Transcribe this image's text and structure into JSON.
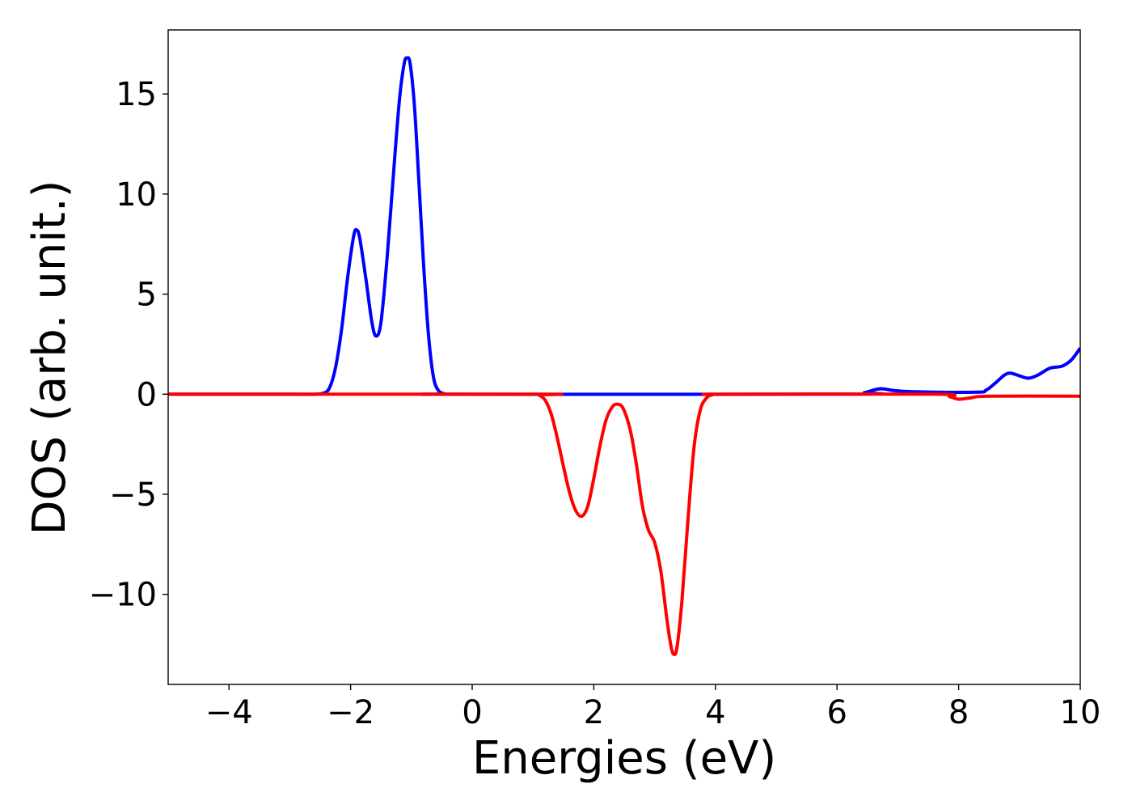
{
  "chart_data": {
    "type": "line",
    "title": "",
    "xlabel": "Energies (eV)",
    "ylabel": "DOS (arb. unit.)",
    "xlim": [
      -5,
      10
    ],
    "ylim": [
      -14.5,
      18.2
    ],
    "grid": false,
    "legend": "none",
    "x_ticks": [
      -4,
      -2,
      0,
      2,
      4,
      6,
      8,
      10
    ],
    "x_tick_labels": [
      "−4",
      "−2",
      "0",
      "2",
      "4",
      "6",
      "8",
      "10"
    ],
    "y_ticks": [
      -10,
      -5,
      0,
      5,
      10,
      15
    ],
    "y_tick_labels": [
      "−10",
      "−5",
      "0",
      "5",
      "10",
      "15"
    ],
    "series": [
      {
        "color": "#0000ff",
        "points": [
          [
            -5.0,
            0.0
          ],
          [
            -3.0,
            0.0
          ],
          [
            -2.6,
            0.0
          ],
          [
            -2.45,
            0.05
          ],
          [
            -2.35,
            0.3
          ],
          [
            -2.25,
            1.3
          ],
          [
            -2.15,
            3.2
          ],
          [
            -2.05,
            5.8
          ],
          [
            -1.95,
            7.9
          ],
          [
            -1.9,
            8.2
          ],
          [
            -1.85,
            7.8
          ],
          [
            -1.75,
            5.8
          ],
          [
            -1.65,
            3.6
          ],
          [
            -1.58,
            2.9
          ],
          [
            -1.5,
            3.6
          ],
          [
            -1.4,
            6.8
          ],
          [
            -1.3,
            10.8
          ],
          [
            -1.2,
            14.6
          ],
          [
            -1.12,
            16.5
          ],
          [
            -1.07,
            16.8
          ],
          [
            -1.02,
            16.5
          ],
          [
            -0.95,
            14.4
          ],
          [
            -0.88,
            10.8
          ],
          [
            -0.8,
            6.5
          ],
          [
            -0.72,
            3.0
          ],
          [
            -0.64,
            0.9
          ],
          [
            -0.56,
            0.2
          ],
          [
            -0.45,
            0.02
          ],
          [
            -0.3,
            0.0
          ],
          [
            6.2,
            0.0
          ],
          [
            6.45,
            0.08
          ],
          [
            6.7,
            0.27
          ],
          [
            6.95,
            0.18
          ],
          [
            7.3,
            0.12
          ],
          [
            8.3,
            0.1
          ],
          [
            8.45,
            0.2
          ],
          [
            8.6,
            0.55
          ],
          [
            8.75,
            0.95
          ],
          [
            8.85,
            1.05
          ],
          [
            9.0,
            0.92
          ],
          [
            9.15,
            0.8
          ],
          [
            9.3,
            0.95
          ],
          [
            9.5,
            1.3
          ],
          [
            9.7,
            1.4
          ],
          [
            9.85,
            1.7
          ],
          [
            10.0,
            2.3
          ]
        ]
      },
      {
        "color": "#ff0000",
        "points": [
          [
            -5.0,
            0.0
          ],
          [
            1.0,
            0.0
          ],
          [
            1.1,
            -0.05
          ],
          [
            1.2,
            -0.3
          ],
          [
            1.3,
            -1.0
          ],
          [
            1.4,
            -2.2
          ],
          [
            1.5,
            -3.6
          ],
          [
            1.6,
            -4.9
          ],
          [
            1.7,
            -5.8
          ],
          [
            1.8,
            -6.1
          ],
          [
            1.9,
            -5.6
          ],
          [
            2.0,
            -4.2
          ],
          [
            2.1,
            -2.6
          ],
          [
            2.2,
            -1.3
          ],
          [
            2.3,
            -0.65
          ],
          [
            2.38,
            -0.5
          ],
          [
            2.48,
            -0.7
          ],
          [
            2.6,
            -1.8
          ],
          [
            2.7,
            -3.5
          ],
          [
            2.8,
            -5.6
          ],
          [
            2.9,
            -6.8
          ],
          [
            3.0,
            -7.4
          ],
          [
            3.1,
            -8.8
          ],
          [
            3.2,
            -11.2
          ],
          [
            3.27,
            -12.6
          ],
          [
            3.32,
            -13.0
          ],
          [
            3.37,
            -12.6
          ],
          [
            3.45,
            -10.3
          ],
          [
            3.55,
            -6.2
          ],
          [
            3.65,
            -2.6
          ],
          [
            3.75,
            -0.8
          ],
          [
            3.85,
            -0.2
          ],
          [
            3.95,
            -0.03
          ],
          [
            4.1,
            0.0
          ],
          [
            7.6,
            0.0
          ],
          [
            7.85,
            -0.12
          ],
          [
            8.0,
            -0.25
          ],
          [
            8.2,
            -0.18
          ],
          [
            8.5,
            -0.1
          ],
          [
            10.0,
            -0.1
          ]
        ]
      }
    ]
  }
}
